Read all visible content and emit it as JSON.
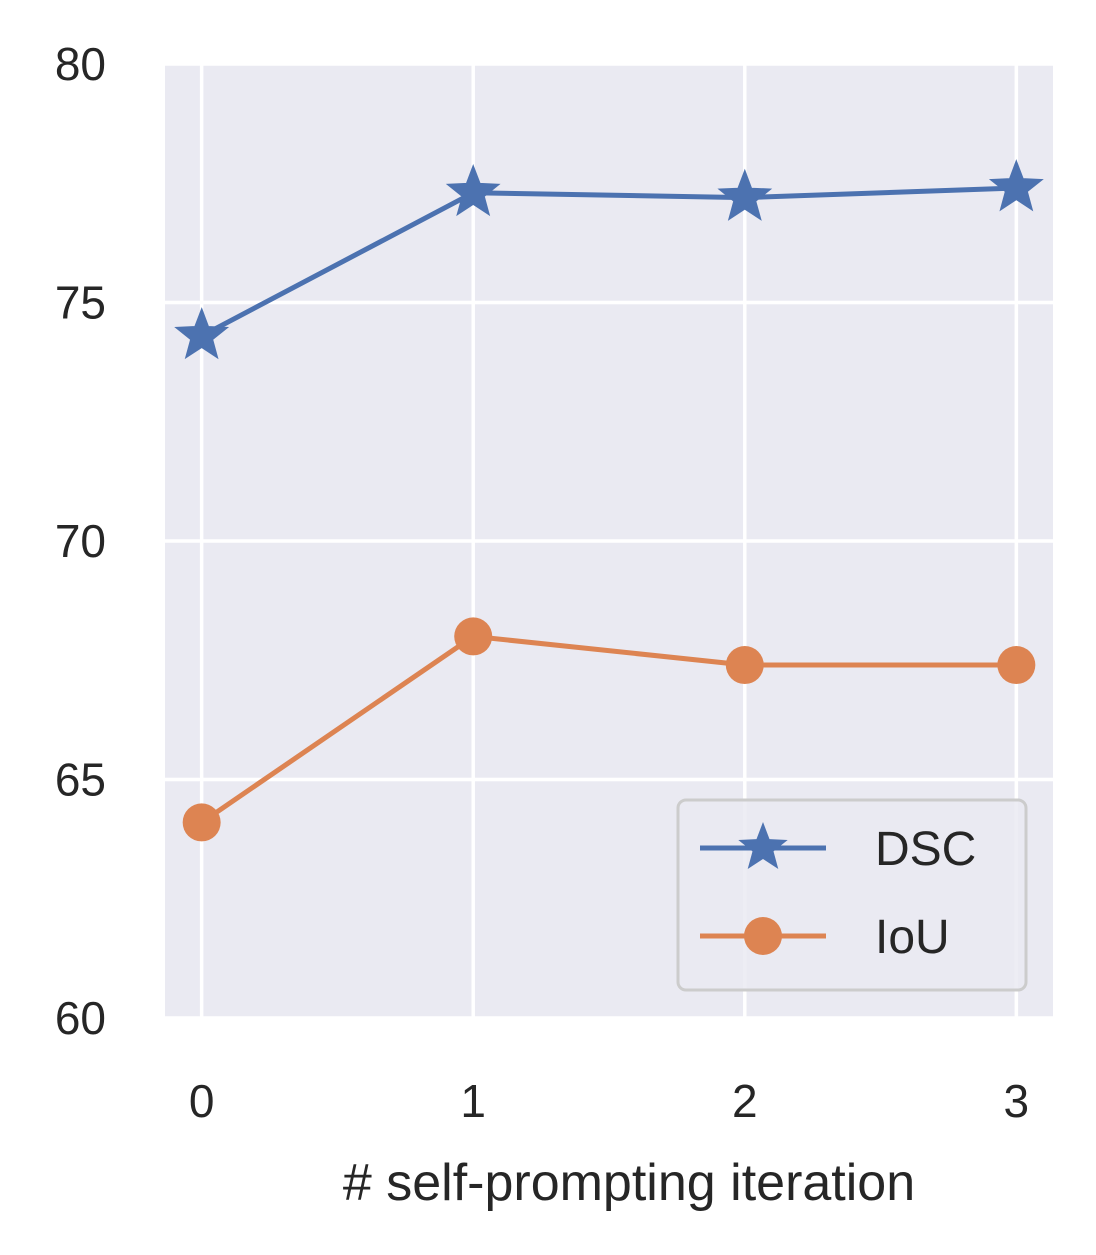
{
  "chart_data": {
    "type": "line",
    "title": "",
    "xlabel": "# self-prompting iteration",
    "ylabel": "",
    "x": [
      0,
      1,
      2,
      3
    ],
    "x_tick_labels": [
      "0",
      "1",
      "2",
      "3"
    ],
    "xlim": [
      -0.135,
      3.135
    ],
    "ylim": [
      60,
      80
    ],
    "y_ticks": [
      60,
      65,
      70,
      75,
      80
    ],
    "y_tick_labels": [
      "60",
      "65",
      "70",
      "75",
      "80"
    ],
    "grid": true,
    "legend_position": "lower-right",
    "series": [
      {
        "name": "DSC",
        "values": [
          74.3,
          77.3,
          77.2,
          77.4
        ],
        "color": "#4c72b0",
        "marker": "star"
      },
      {
        "name": "IoU",
        "values": [
          64.1,
          68.0,
          67.4,
          67.4
        ],
        "color": "#dd8452",
        "marker": "circle"
      }
    ],
    "colors": {
      "plot_background": "#eaeaf2",
      "grid": "#ffffff",
      "legend_border": "#cccccc"
    }
  }
}
